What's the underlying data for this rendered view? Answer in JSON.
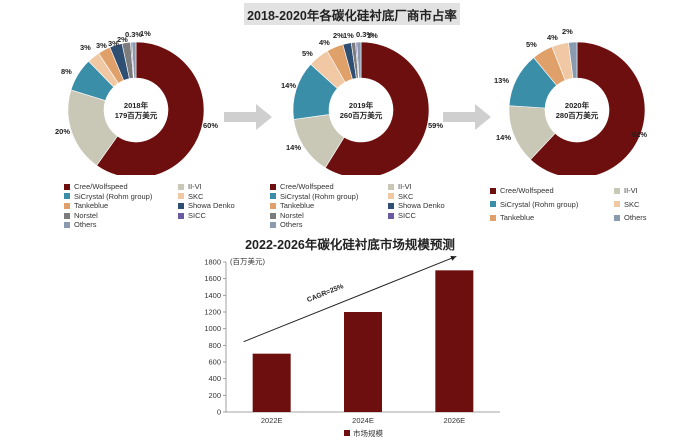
{
  "pie_title": "2018-2020年各碳化硅衬底厂商市占率",
  "bar_title": "2022-2026年碳化硅衬底市场规模预测",
  "colors": {
    "Cree/Wolfspeed": "#6e0f0f",
    "II-VI": "#c9c7b6",
    "SiCrystal (Rohm group)": "#3a8ea8",
    "SKC": "#f0c9a4",
    "Tankeblue": "#e0a06a",
    "Showa Denko": "#2f4f72",
    "Norstel": "#7c7c7c",
    "SICC": "#6a5aa0",
    "Others": "#8a9bb0",
    "bar": "#6e0f0f",
    "arrow_gray": "#cfcfcf"
  },
  "chart_data": [
    {
      "type": "pie",
      "center_line1": "2018年",
      "center_line2": "179百万美元",
      "slices": [
        {
          "name": "Cree/Wolfspeed",
          "value": 60,
          "label": "60%"
        },
        {
          "name": "II-VI",
          "value": 20,
          "label": "20%"
        },
        {
          "name": "SiCrystal (Rohm group)",
          "value": 8,
          "label": "8%"
        },
        {
          "name": "SKC",
          "value": 3,
          "label": "3%"
        },
        {
          "name": "Tankeblue",
          "value": 3,
          "label": "3%"
        },
        {
          "name": "Showa Denko",
          "value": 3,
          "label": "3%"
        },
        {
          "name": "Norstel",
          "value": 2,
          "label": "2%"
        },
        {
          "name": "SICC",
          "value": 0.3,
          "label": "0.3%"
        },
        {
          "name": "Others",
          "value": 1,
          "label": "1%"
        }
      ],
      "legend": [
        "Cree/Wolfspeed",
        "II-VI",
        "SiCrystal (Rohm group)",
        "SKC",
        "Tankeblue",
        "Showa Denko",
        "Norstel",
        "SICC",
        "Others"
      ]
    },
    {
      "type": "pie",
      "center_line1": "2019年",
      "center_line2": "260百万美元",
      "slices": [
        {
          "name": "Cree/Wolfspeed",
          "value": 59,
          "label": "59%"
        },
        {
          "name": "II-VI",
          "value": 14,
          "label": "14%"
        },
        {
          "name": "SiCrystal (Rohm group)",
          "value": 14,
          "label": "14%"
        },
        {
          "name": "SKC",
          "value": 5,
          "label": "5%"
        },
        {
          "name": "Tankeblue",
          "value": 4,
          "label": "4%"
        },
        {
          "name": "Showa Denko",
          "value": 2,
          "label": "2%"
        },
        {
          "name": "Norstel",
          "value": 1,
          "label": "1%"
        },
        {
          "name": "SICC",
          "value": 0.3,
          "label": "0.3%"
        },
        {
          "name": "Others",
          "value": 1,
          "label": "1%"
        }
      ],
      "legend": [
        "Cree/Wolfspeed",
        "II-VI",
        "SiCrystal (Rohm group)",
        "SKC",
        "Tankeblue",
        "Showa Denko",
        "Norstel",
        "SICC",
        "Others"
      ]
    },
    {
      "type": "pie",
      "center_line1": "2020年",
      "center_line2": "280百万美元",
      "slices": [
        {
          "name": "Cree/Wolfspeed",
          "value": 62,
          "label": "62%"
        },
        {
          "name": "II-VI",
          "value": 14,
          "label": "14%"
        },
        {
          "name": "SiCrystal (Rohm group)",
          "value": 13,
          "label": "13%"
        },
        {
          "name": "Tankeblue",
          "value": 5,
          "label": "5%"
        },
        {
          "name": "SKC",
          "value": 4,
          "label": "4%"
        },
        {
          "name": "Others",
          "value": 2,
          "label": "2%"
        }
      ],
      "legend": [
        "Cree/Wolfspeed",
        "II-VI",
        "SiCrystal (Rohm group)",
        "SKC",
        "Tankeblue",
        "Others"
      ]
    },
    {
      "type": "bar",
      "categories": [
        "2022E",
        "2024E",
        "2026E"
      ],
      "values": [
        700,
        1200,
        1700
      ],
      "ylabel": "(百万美元)",
      "ylim": [
        0,
        1800
      ],
      "yticks": [
        "0",
        "200",
        "400",
        "600",
        "800",
        "1000",
        "1200",
        "1400",
        "1600",
        "1800"
      ],
      "legend": "市场规模",
      "annotation": "CAGR=25%"
    }
  ]
}
